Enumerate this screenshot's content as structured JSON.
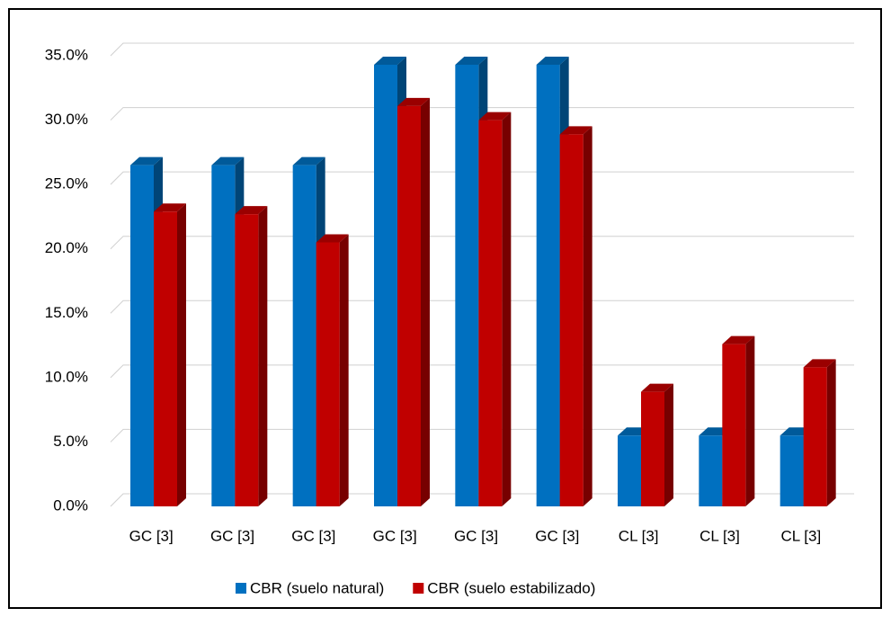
{
  "chart_data": {
    "type": "bar3d",
    "categories": [
      "GC [3]",
      "GC [3]",
      "GC [3]",
      "GC [3]",
      "GC [3]",
      "GC [3]",
      "CL [3]",
      "CL [3]",
      "CL [3]"
    ],
    "series": [
      {
        "name": "CBR (suelo natural)",
        "color": "#0070c0",
        "values": [
          26.5,
          26.5,
          26.5,
          34.3,
          34.3,
          34.3,
          5.5,
          5.5,
          5.5
        ]
      },
      {
        "name": "CBR (suelo estabilizado)",
        "color": "#c00000",
        "values": [
          22.9,
          22.7,
          20.5,
          31.1,
          30.0,
          28.9,
          8.9,
          12.6,
          10.8
        ]
      }
    ],
    "ylim": [
      0,
      35
    ],
    "yticks": [
      {
        "value": 0,
        "label": "0.0%"
      },
      {
        "value": 5,
        "label": "5.0%"
      },
      {
        "value": 10,
        "label": "10.0%"
      },
      {
        "value": 15,
        "label": "15.0%"
      },
      {
        "value": 20,
        "label": "20.0%"
      },
      {
        "value": 25,
        "label": "25.0%"
      },
      {
        "value": 30,
        "label": "30.0%"
      },
      {
        "value": 35,
        "label": "35.0%"
      }
    ],
    "grid": true,
    "legend": "bottom"
  }
}
